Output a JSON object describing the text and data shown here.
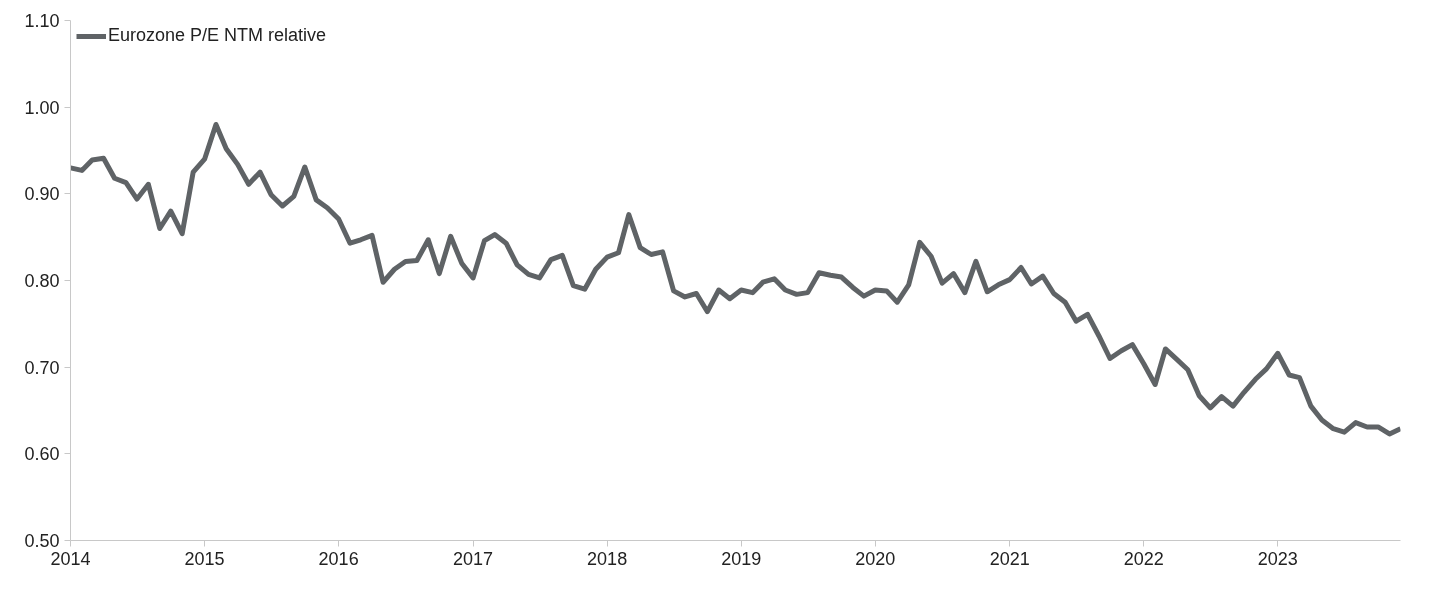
{
  "chart_data": {
    "type": "line",
    "legend": "top left",
    "grid": false,
    "x": [
      "2014-01",
      "2014-02",
      "2014-03",
      "2014-04",
      "2014-05",
      "2014-06",
      "2014-07",
      "2014-08",
      "2014-09",
      "2014-10",
      "2014-11",
      "2014-12",
      "2015-01",
      "2015-02",
      "2015-03",
      "2015-04",
      "2015-05",
      "2015-06",
      "2015-07",
      "2015-08",
      "2015-09",
      "2015-10",
      "2015-11",
      "2015-12",
      "2016-01",
      "2016-02",
      "2016-03",
      "2016-04",
      "2016-05",
      "2016-06",
      "2016-07",
      "2016-08",
      "2016-09",
      "2016-10",
      "2016-11",
      "2016-12",
      "2017-01",
      "2017-02",
      "2017-03",
      "2017-04",
      "2017-05",
      "2017-06",
      "2017-07",
      "2017-08",
      "2017-09",
      "2017-10",
      "2017-11",
      "2017-12",
      "2018-01",
      "2018-02",
      "2018-03",
      "2018-04",
      "2018-05",
      "2018-06",
      "2018-07",
      "2018-08",
      "2018-09",
      "2018-10",
      "2018-11",
      "2018-12",
      "2019-01",
      "2019-02",
      "2019-03",
      "2019-04",
      "2019-05",
      "2019-06",
      "2019-07",
      "2019-08",
      "2019-09",
      "2019-10",
      "2019-11",
      "2019-12",
      "2020-01",
      "2020-02",
      "2020-03",
      "2020-04",
      "2020-05",
      "2020-06",
      "2020-07",
      "2020-08",
      "2020-09",
      "2020-10",
      "2020-11",
      "2020-12",
      "2021-01",
      "2021-02",
      "2021-03",
      "2021-04",
      "2021-05",
      "2021-06",
      "2021-07",
      "2021-08",
      "2021-09",
      "2021-10",
      "2021-11",
      "2021-12",
      "2022-01",
      "2022-02",
      "2022-03",
      "2022-04",
      "2022-05",
      "2022-06",
      "2022-07",
      "2022-08",
      "2022-09",
      "2022-10",
      "2022-11",
      "2022-12",
      "2023-01",
      "2023-02",
      "2023-03",
      "2023-04",
      "2023-05",
      "2023-06",
      "2023-07",
      "2023-08",
      "2023-09",
      "2023-10",
      "2023-11",
      "2023-12"
    ],
    "series": [
      {
        "name": "Eurozone P/E NTM relative",
        "color": "#5f6366",
        "values": [
          0.93,
          0.927,
          0.939,
          0.941,
          0.918,
          0.913,
          0.894,
          0.911,
          0.86,
          0.88,
          0.854,
          0.925,
          0.94,
          0.98,
          0.952,
          0.934,
          0.911,
          0.925,
          0.899,
          0.886,
          0.897,
          0.931,
          0.893,
          0.884,
          0.871,
          0.843,
          0.847,
          0.852,
          0.798,
          0.813,
          0.822,
          0.823,
          0.847,
          0.808,
          0.851,
          0.82,
          0.803,
          0.846,
          0.853,
          0.843,
          0.818,
          0.807,
          0.803,
          0.824,
          0.829,
          0.794,
          0.79,
          0.813,
          0.827,
          0.832,
          0.876,
          0.838,
          0.83,
          0.833,
          0.788,
          0.781,
          0.785,
          0.764,
          0.789,
          0.779,
          0.789,
          0.786,
          0.798,
          0.802,
          0.789,
          0.784,
          0.786,
          0.809,
          0.806,
          0.804,
          0.792,
          0.782,
          0.789,
          0.788,
          0.775,
          0.795,
          0.844,
          0.828,
          0.797,
          0.808,
          0.786,
          0.822,
          0.787,
          0.795,
          0.801,
          0.815,
          0.796,
          0.805,
          0.785,
          0.775,
          0.753,
          0.761,
          0.736,
          0.71,
          0.719,
          0.726,
          0.704,
          0.68,
          0.721,
          0.709,
          0.697,
          0.667,
          0.653,
          0.666,
          0.655,
          0.671,
          0.686,
          0.698,
          0.716,
          0.691,
          0.688,
          0.655,
          0.639,
          0.629,
          0.625,
          0.636,
          0.631,
          0.631,
          0.623,
          0.629
        ]
      }
    ],
    "xlim": [
      "2014-01",
      "2023-12"
    ],
    "xticks": [
      "2014",
      "2015",
      "2016",
      "2017",
      "2018",
      "2019",
      "2020",
      "2021",
      "2022",
      "2023"
    ],
    "ylim": [
      0.5,
      1.1
    ],
    "yticks": [
      {
        "value": 0.5,
        "label": "0.50"
      },
      {
        "value": 0.6,
        "label": "0.60"
      },
      {
        "value": 0.7,
        "label": "0.70"
      },
      {
        "value": 0.8,
        "label": "0.80"
      },
      {
        "value": 0.9,
        "label": "0.90"
      },
      {
        "value": 1.0,
        "label": "1.00"
      },
      {
        "value": 1.1,
        "label": "1.10"
      }
    ]
  }
}
